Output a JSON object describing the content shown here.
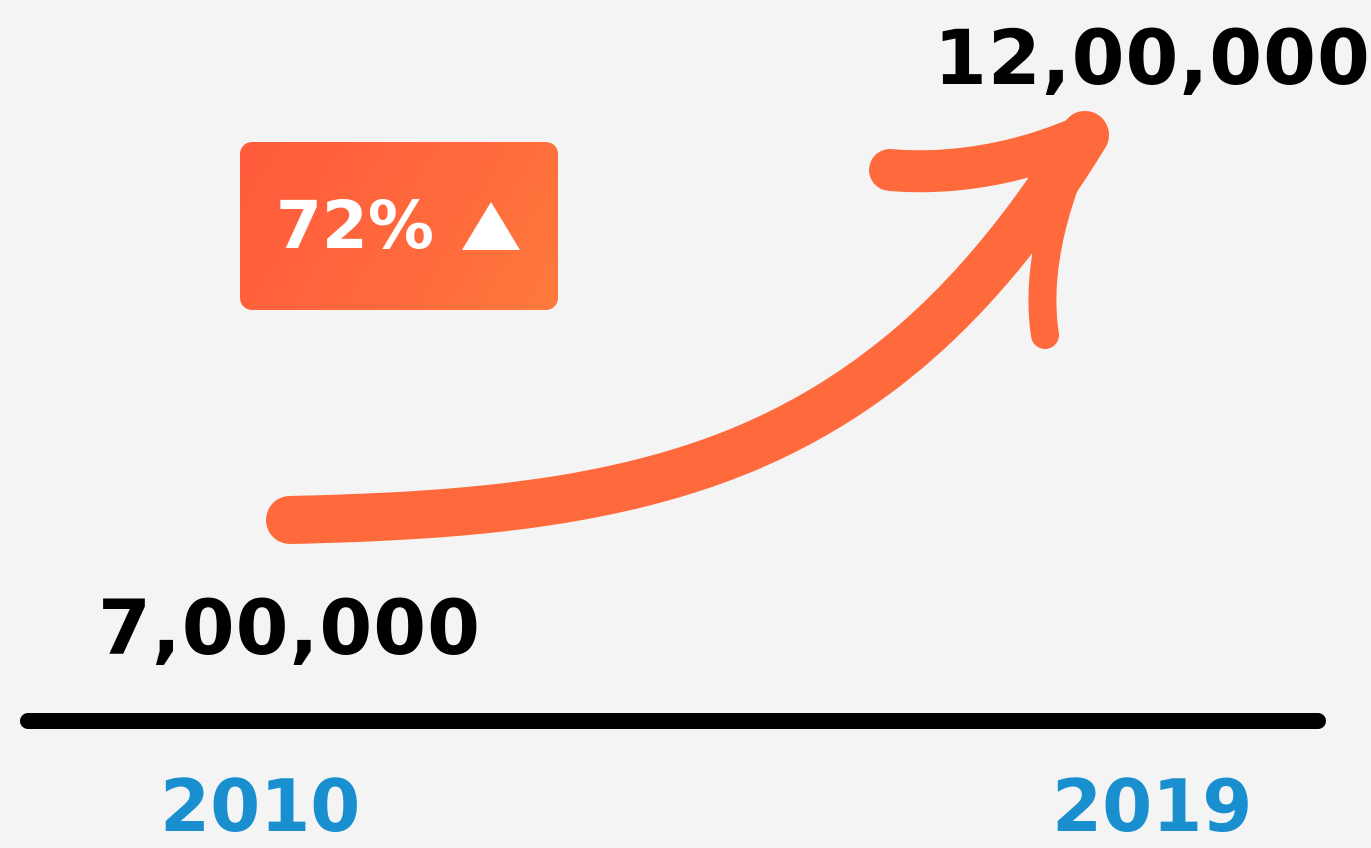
{
  "chart_data": {
    "type": "line",
    "categories": [
      "2010",
      "2019"
    ],
    "series": [
      {
        "values": [
          700000,
          1200000
        ]
      }
    ],
    "data_labels": [
      "7,00,000",
      "12,00,000"
    ],
    "change": {
      "label": "72%",
      "direction": "up",
      "direction_icon": "triangle-up-icon"
    },
    "axis_visible": true,
    "grid": false,
    "colors": {
      "arrow": "#ff6a3c",
      "badge": "#ff5a3c",
      "axis": "#000000",
      "year_text": "#1a8fd0",
      "value_text": "#000000",
      "badge_text": "#ffffff"
    }
  }
}
